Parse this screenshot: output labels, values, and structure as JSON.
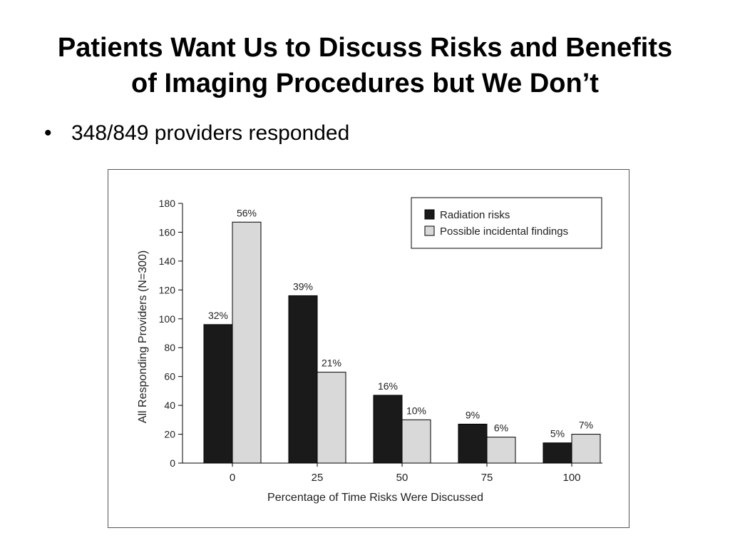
{
  "slide": {
    "title_line1": "Patients Want Us to Discuss Risks and Benefits",
    "title_line2": "of Imaging Procedures but We Don’t",
    "bullet_marker": "•",
    "bullets": [
      "348/849 providers responded"
    ]
  },
  "chart_data": {
    "type": "bar",
    "xlabel": "Percentage of Time Risks Were Discussed",
    "ylabel": "All Responding Providers (N=300)",
    "categories": [
      "0",
      "25",
      "50",
      "75",
      "100"
    ],
    "ylim": [
      0,
      180
    ],
    "yticks": [
      0,
      20,
      40,
      60,
      80,
      100,
      120,
      140,
      160,
      180
    ],
    "grid": false,
    "legend_position": "top-right",
    "series": [
      {
        "name": "Radiation risks",
        "color": "#1a1a1a",
        "values": [
          96,
          116,
          47,
          27,
          14
        ],
        "labels": [
          "32%",
          "39%",
          "16%",
          "9%",
          "5%"
        ]
      },
      {
        "name": "Possible incidental findings",
        "color": "#d9d9d9",
        "values": [
          167,
          63,
          30,
          18,
          20
        ],
        "labels": [
          "56%",
          "21%",
          "10%",
          "6%",
          "7%"
        ]
      }
    ]
  }
}
